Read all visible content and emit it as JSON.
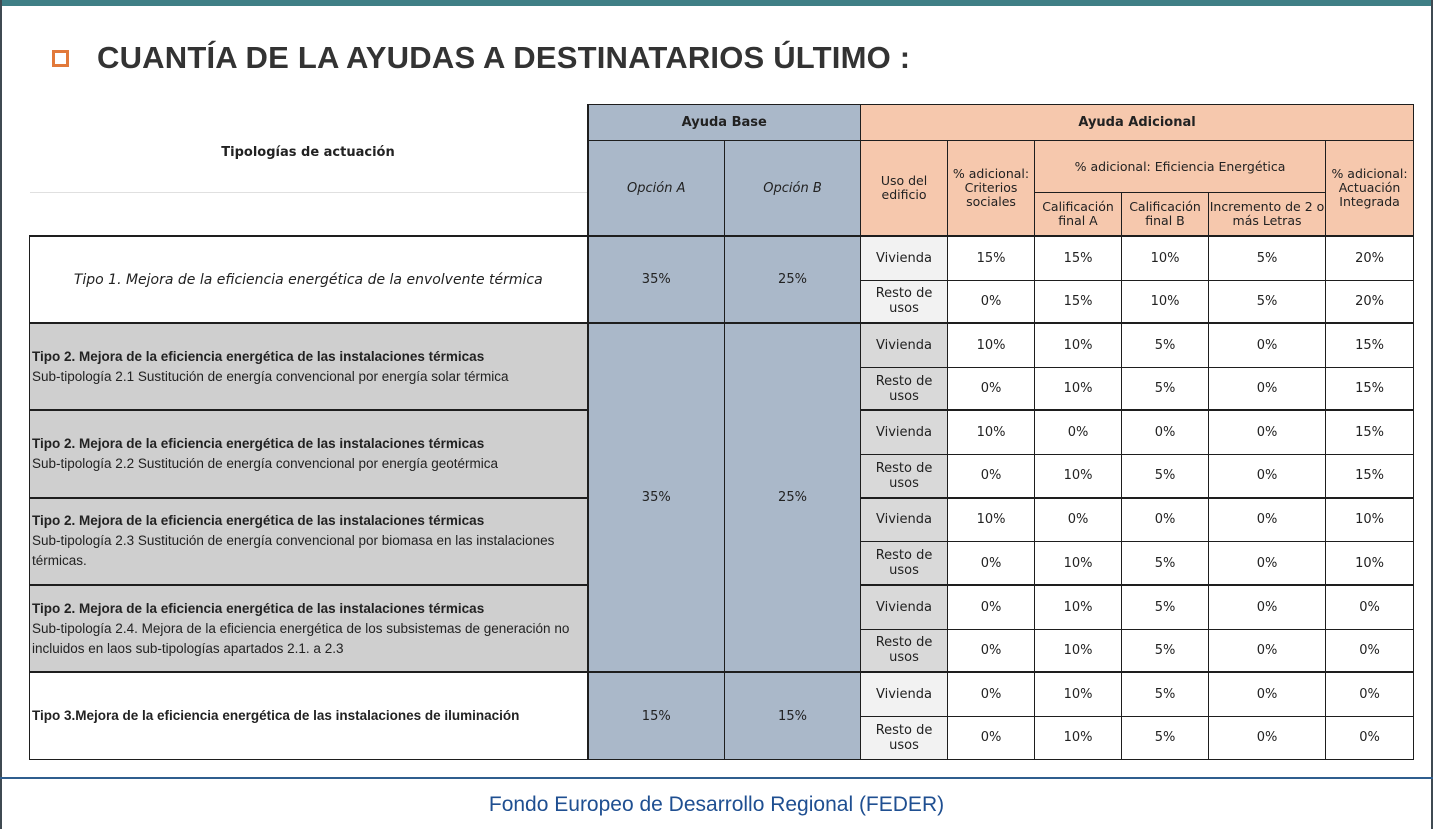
{
  "title": "CUANTÍA DE LA AYUDAS A DESTINATARIOS ÚLTIMO :",
  "header": {
    "tipologias": "Tipologías de actuación",
    "ayuda_base": "Ayuda Base",
    "ayuda_adicional": "Ayuda Adicional",
    "opcion_a": "Opción A",
    "opcion_b": "Opción B",
    "uso_edificio": "Uso del edificio",
    "criterios_sociales": "% adicional: Criterios sociales",
    "eficiencia": "% adicional: Eficiencia Energética",
    "cal_a": "Calificación final A",
    "cal_b": "Calificación final B",
    "incremento": "Incremento de 2 o más Letras",
    "integrada": "% adicional: Actuación Integrada"
  },
  "usos": {
    "vivienda": "Vivienda",
    "resto": "Resto de usos"
  },
  "groups": [
    {
      "tipo": "Tipo 1. Mejora de la eficiencia energética de la envolvente térmica",
      "base_a": "35%",
      "base_b": "25%",
      "rows": [
        [
          "15%",
          "15%",
          "10%",
          "5%",
          "20%"
        ],
        [
          "0%",
          "15%",
          "10%",
          "5%",
          "20%"
        ]
      ]
    },
    {
      "tipo": "Tipo 2. Mejora de la eficiencia energética de las instalaciones térmicas",
      "sub": "Sub-tipología 2.1 Sustitución de energía convencional por energía solar térmica",
      "rows": [
        [
          "10%",
          "10%",
          "5%",
          "0%",
          "15%"
        ],
        [
          "0%",
          "10%",
          "5%",
          "0%",
          "15%"
        ]
      ]
    },
    {
      "tipo": "Tipo 2. Mejora de la eficiencia energética de las instalaciones térmicas",
      "sub": "Sub-tipología 2.2 Sustitución de energía convencional por energía geotérmica",
      "rows": [
        [
          "10%",
          "0%",
          "0%",
          "0%",
          "15%"
        ],
        [
          "0%",
          "10%",
          "5%",
          "0%",
          "15%"
        ]
      ]
    },
    {
      "tipo": "Tipo 2. Mejora de la eficiencia energética de las instalaciones térmicas",
      "sub": "Sub-tipología 2.3 Sustitución de energía convencional por biomasa en las instalaciones térmicas.",
      "rows": [
        [
          "10%",
          "0%",
          "0%",
          "0%",
          "10%"
        ],
        [
          "0%",
          "10%",
          "5%",
          "0%",
          "10%"
        ]
      ]
    },
    {
      "tipo": "Tipo 2. Mejora de la eficiencia energética de las instalaciones térmicas",
      "sub": "Sub-tipología 2.4. Mejora de la eficiencia energética de los subsistemas de generación no incluidos en laos sub-tipologías apartados 2.1. a 2.3",
      "rows": [
        [
          "0%",
          "10%",
          "5%",
          "0%",
          "0%"
        ],
        [
          "0%",
          "10%",
          "5%",
          "0%",
          "0%"
        ]
      ]
    },
    {
      "tipo": "Tipo 3.Mejora de la eficiencia energética de las instalaciones de iluminación",
      "base_a": "15%",
      "base_b": "15%",
      "rows": [
        [
          "0%",
          "10%",
          "5%",
          "0%",
          "0%"
        ],
        [
          "0%",
          "10%",
          "5%",
          "0%",
          "0%"
        ]
      ]
    }
  ],
  "tipo2_base_a": "35%",
  "tipo2_base_b": "25%",
  "footer": "Fondo Europeo de Desarrollo Regional  (FEDER)",
  "colors": {
    "base": "#aab8c9",
    "adicional": "#f6c8ad",
    "grey_rows": "#cfcfcf",
    "accent": "#e2793a",
    "footer": "#1f4f91"
  }
}
